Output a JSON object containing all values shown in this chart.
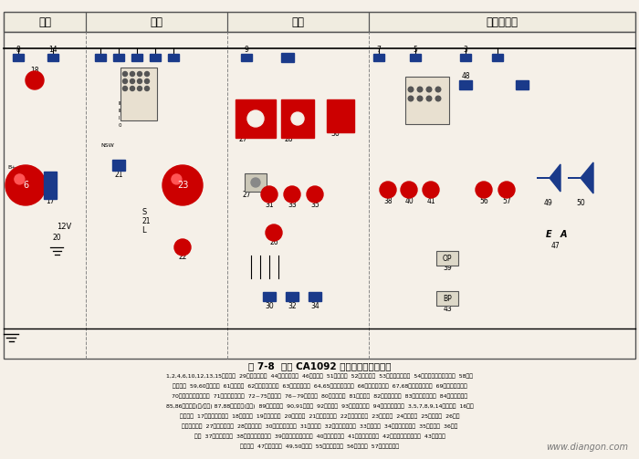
{
  "title": "图 7-8  解放 CA1092 汽车整车电路原理图",
  "bg_color": "#f5f0e8",
  "caption_lines": [
    "1,2,4,6,10,12,13,15一熔断器  29一工作等插座  44一收放机天线  46一扬声器  51一点燃器  52一暖风电机  53一暖风电机开关  54一暖风电动机变速电阻  58一制",
    "动灯开关  59,60一制动灯  61一闪光灯  62一危险报警开关  63一转向灯开关  64,65一左转向信号灯  66一左转向指示灯  67,68一右转向信号灯  69一右转向指示灯",
    "70一发动机罩下灯开关  71一发动机罩下灯  72~75一示宽灯  76~79一仪表灯  80一车灯开关  81一室内灯  82一灯光继电器  83一脚踏变光开关  84一远光指示灯",
    "85,86一前照灯(远/近光) 87,88一前照灯(远光)  89一雾灯开关  90,91一雾灯  92一刮水器  93一刮水器开关  94一七孔挂车插座  3,5,7,8,9,14一熔断器  16一交",
    "流发电机  17一晶体管调节器  18一电流表  19一点火开关  20一蓄电池  21一组合继电器  22一充电指示灯  23一起动机  24一火花塞  25一分电器  26一点",
    "火信号发生器  27一点火控制器  28一点火线圈  30一油压表传感器  31一油压表  32一燃油表传感器  33一燃油表  34一水温表传感器  35一水温表  36一稳",
    "压器  37一停车等开关  38一机油压力警告灯  39一油压力警告灯开关  40一停车指示灯  41一低气压报警灯  42一低气压报警蜂鸣器  43一低气压",
    "报警开关  47一喇叭按钮  49,50一喇叭  55一倒车灯开关  56一倒车灯  57一倒车蜂鸣器"
  ],
  "website": "www.diangon.com",
  "sec_coords": [
    [
      4,
      94,
      "电源"
    ],
    [
      94,
      249,
      "起动"
    ],
    [
      249,
      404,
      "点火"
    ],
    [
      404,
      696,
      "仪表和信号"
    ]
  ],
  "RED": "#cc0000",
  "BLUE": "#1a3a8a",
  "WHITE": "#ffffff",
  "BLACK": "#000000"
}
